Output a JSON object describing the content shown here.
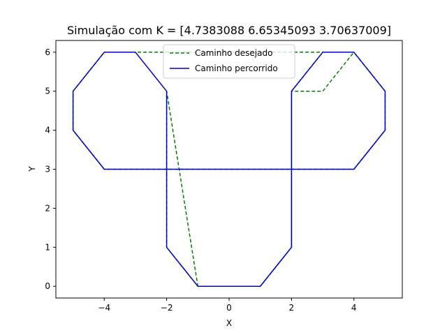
{
  "chart_data": {
    "type": "line",
    "title": "Simulação com K = [4.7383088  6.65345093 3.70637009]",
    "xlabel": "X",
    "ylabel": "Y",
    "xlim": [
      -5.55,
      5.55
    ],
    "ylim": [
      -0.3,
      6.3
    ],
    "xticks": [
      -4,
      -2,
      0,
      2,
      4
    ],
    "yticks": [
      0,
      1,
      2,
      3,
      4,
      5,
      6
    ],
    "grid": false,
    "legend_position": "top-center",
    "series": [
      {
        "name": "Caminho desejado",
        "color": "#008000",
        "style": "dashed",
        "x": [
          -1,
          1,
          2,
          2,
          3,
          4,
          5,
          5,
          4,
          3,
          2,
          2,
          -2,
          -2,
          -3,
          -4,
          -5,
          -5,
          -4,
          4,
          3,
          2,
          2,
          1,
          -1,
          -2,
          -2,
          -1
        ],
        "y": [
          0,
          0,
          1,
          5,
          6,
          6,
          5,
          4,
          3,
          3,
          3,
          3,
          3,
          3,
          3,
          3,
          4,
          5,
          6,
          6,
          5,
          5,
          1,
          0,
          0,
          1,
          5,
          0
        ]
      },
      {
        "name": "Caminho percorrido",
        "color": "#0000cc",
        "style": "solid",
        "x": [
          -1,
          1,
          2,
          2,
          3,
          4,
          5,
          5,
          4,
          -4,
          -5,
          -5,
          -4,
          -3,
          -2,
          -2,
          -1
        ],
        "y": [
          0,
          0,
          1,
          5,
          6,
          6,
          5,
          4,
          3,
          3,
          4,
          5,
          6,
          6,
          5,
          1,
          0
        ]
      }
    ]
  }
}
